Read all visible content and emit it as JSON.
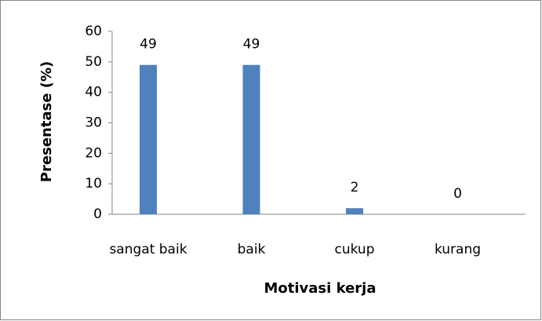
{
  "chart_data": {
    "type": "bar",
    "categories": [
      "sangat baik",
      "baik",
      "cukup",
      "kurang"
    ],
    "values": [
      49,
      49,
      2,
      0
    ],
    "color": "#4f81bd",
    "ylim": [
      0,
      60
    ],
    "yticks": [
      0,
      10,
      20,
      30,
      40,
      50,
      60
    ],
    "ylabel": "Presentase (%)",
    "xlabel": "Motivasi kerja",
    "grid": false
  }
}
